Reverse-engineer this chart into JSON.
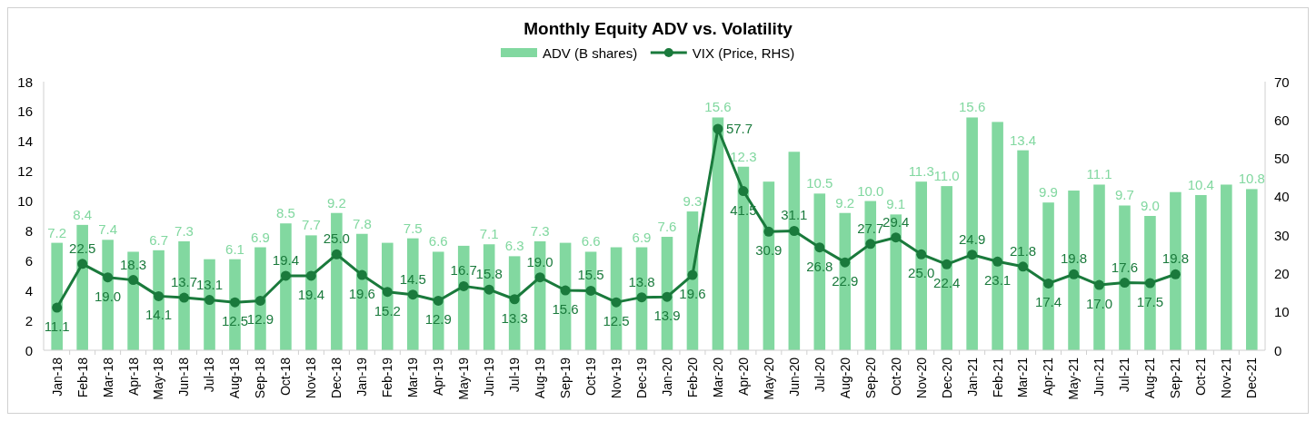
{
  "chart_data": {
    "type": "bar",
    "title": "Monthly Equity ADV vs. Volatility",
    "categories": [
      "Jan-18",
      "Feb-18",
      "Mar-18",
      "Apr-18",
      "May-18",
      "Jun-18",
      "Jul-18",
      "Aug-18",
      "Sep-18",
      "Oct-18",
      "Nov-18",
      "Dec-18",
      "Jan-19",
      "Feb-19",
      "Mar-19",
      "Apr-19",
      "May-19",
      "Jun-19",
      "Jul-19",
      "Aug-19",
      "Sep-19",
      "Oct-19",
      "Nov-19",
      "Dec-19",
      "Jan-20",
      "Feb-20",
      "Mar-20",
      "Apr-20",
      "May-20",
      "Jun-20",
      "Jul-20",
      "Aug-20",
      "Sep-20",
      "Oct-20",
      "Nov-20",
      "Dec-20",
      "Jan-21",
      "Feb-21",
      "Mar-21",
      "Apr-21",
      "May-21",
      "Jun-21",
      "Jul-21",
      "Aug-21",
      "Sep-21",
      "Oct-21",
      "Nov-21",
      "Dec-21"
    ],
    "series": [
      {
        "name": "ADV (B shares)",
        "color": "#82d8a0",
        "values": [
          7.2,
          8.4,
          7.4,
          6.6,
          6.7,
          7.3,
          6.1,
          6.1,
          6.9,
          8.5,
          7.7,
          9.2,
          7.8,
          7.2,
          7.5,
          6.6,
          7.0,
          7.1,
          6.3,
          7.3,
          7.2,
          6.6,
          6.9,
          6.9,
          7.6,
          9.3,
          15.6,
          12.3,
          11.3,
          13.3,
          10.5,
          9.2,
          10.0,
          9.1,
          11.3,
          11.0,
          15.6,
          15.3,
          13.4,
          9.9,
          10.7,
          11.1,
          9.7,
          9.0,
          10.6,
          10.4,
          11.1,
          10.8
        ],
        "value_labels": [
          "7.2",
          "8.4",
          "7.4",
          null,
          "6.7",
          "7.3",
          null,
          "6.1",
          "6.9",
          "8.5",
          "7.7",
          "9.2",
          "7.8",
          null,
          "7.5",
          "6.6",
          null,
          "7.1",
          "6.3",
          "7.3",
          null,
          "6.6",
          null,
          "6.9",
          "7.6",
          "9.3",
          "15.6",
          "12.3",
          null,
          null,
          "10.5",
          "9.2",
          "10.0",
          "9.1",
          "11.3",
          "11.0",
          "15.6",
          null,
          "13.4",
          "9.9",
          null,
          "11.1",
          "9.7",
          "9.0",
          null,
          "10.4",
          null,
          "10.8"
        ]
      },
      {
        "name": "VIX (Price, RHS)",
        "type": "line",
        "axis": "y2",
        "color": "#1a7a3c",
        "marker": "circle",
        "values": [
          11.1,
          22.5,
          19.0,
          18.3,
          14.1,
          13.7,
          13.1,
          12.5,
          12.9,
          19.4,
          19.4,
          25.0,
          19.6,
          15.2,
          14.5,
          12.9,
          16.7,
          15.8,
          13.3,
          19.0,
          15.6,
          15.5,
          12.5,
          13.8,
          13.9,
          19.6,
          57.7,
          41.5,
          30.9,
          31.1,
          26.8,
          22.9,
          27.7,
          29.4,
          25.0,
          22.4,
          24.9,
          23.1,
          21.8,
          17.4,
          19.8,
          17.0,
          17.6,
          17.5,
          19.8,
          null,
          null,
          null
        ],
        "value_labels": [
          "11.1",
          "22.5",
          "19.0",
          "18.3",
          "14.1",
          "13.7",
          "13.1",
          "12.5",
          "12.9",
          "19.4",
          "19.4",
          "25.0",
          "19.6",
          "15.2",
          "14.5",
          "12.9",
          "16.7",
          "15.8",
          "13.3",
          "19.0",
          "15.6",
          "15.5",
          "12.5",
          "13.8",
          "13.9",
          "19.6",
          "57.7",
          "41.5",
          "30.9",
          "31.1",
          "26.8",
          "22.9",
          "27.7",
          "29.4",
          "25.0",
          "22.4",
          "24.9",
          "23.1",
          "21.8",
          "17.4",
          "19.8",
          "17.0",
          "17.6",
          "17.5",
          "19.8",
          null,
          null,
          null
        ]
      }
    ],
    "ylim": [
      0,
      18
    ],
    "yticks": [
      0,
      2,
      4,
      6,
      8,
      10,
      12,
      14,
      16,
      18
    ],
    "y2lim": [
      0,
      70
    ],
    "y2ticks": [
      0,
      10,
      20,
      30,
      40,
      50,
      60,
      70
    ],
    "legend": "top",
    "grid": false
  }
}
